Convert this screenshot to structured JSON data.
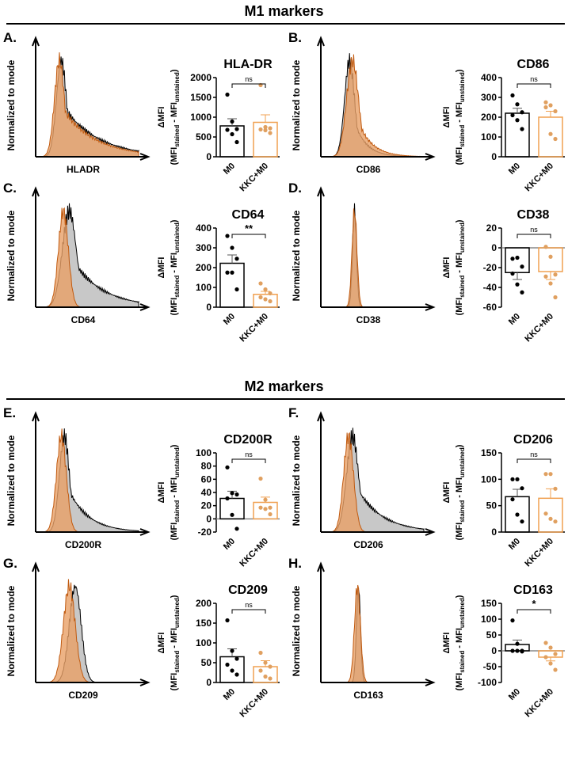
{
  "sections": [
    {
      "title": "M1 markers"
    },
    {
      "title": "M2 markers"
    }
  ],
  "colors": {
    "m0": "#000000",
    "kkc": "#f0a050",
    "grey_fill": "#c8c8c8",
    "orange_fill": "#e8a066"
  },
  "histogram_ylabel": "Normalized to mode",
  "bar_ylabel_main": "ΔMFI",
  "bar_ylabel_sub": "(MFI",
  "bar_ylabel_parts": [
    "(MFI",
    "stained",
    " - MFI",
    "unstained",
    ")"
  ],
  "categories": [
    "M0",
    "KKC+M0"
  ],
  "chart_data": [
    {
      "panel": "A.",
      "type": "bar",
      "title": "HLA-DR",
      "histogram_xlabel": "HLADR",
      "ylim": [
        0,
        2000
      ],
      "ticks": [
        0,
        500,
        1000,
        1500,
        2000
      ],
      "significance": "ns",
      "series": [
        {
          "name": "M0",
          "mean": 780,
          "sem": 180,
          "points": [
            1570,
            890,
            700,
            680,
            570,
            370
          ]
        },
        {
          "name": "KKC+M0",
          "mean": 870,
          "sem": 190,
          "points": [
            1810,
            750,
            720,
            690,
            670,
            600
          ]
        }
      ]
    },
    {
      "panel": "B.",
      "type": "bar",
      "title": "CD86",
      "histogram_xlabel": "CD86",
      "ylim": [
        0,
        400
      ],
      "ticks": [
        0,
        100,
        200,
        300,
        400
      ],
      "significance": "ns",
      "series": [
        {
          "name": "M0",
          "mean": 220,
          "sem": 25,
          "points": [
            310,
            265,
            225,
            210,
            185,
            140
          ]
        },
        {
          "name": "KKC+M0",
          "mean": 200,
          "sem": 30,
          "points": [
            275,
            260,
            230,
            250,
            115,
            90
          ]
        }
      ]
    },
    {
      "panel": "C.",
      "type": "bar",
      "title": "CD64",
      "histogram_xlabel": "CD64",
      "ylim": [
        0,
        400
      ],
      "ticks": [
        0,
        100,
        200,
        300,
        400
      ],
      "significance": "**",
      "series": [
        {
          "name": "M0",
          "mean": 222,
          "sem": 42,
          "points": [
            360,
            300,
            245,
            175,
            175,
            90
          ]
        },
        {
          "name": "KKC+M0",
          "mean": 65,
          "sem": 15,
          "points": [
            120,
            90,
            70,
            50,
            40,
            30
          ]
        }
      ]
    },
    {
      "panel": "D.",
      "type": "bar",
      "title": "CD38",
      "histogram_xlabel": "CD38",
      "ylim": [
        -60,
        20
      ],
      "ticks": [
        -60,
        -40,
        -20,
        0,
        20
      ],
      "significance": "ns",
      "series": [
        {
          "name": "M0",
          "mean": -25,
          "sem": 7,
          "points": [
            -11,
            -10,
            -19,
            -26,
            -37,
            -45
          ]
        },
        {
          "name": "KKC+M0",
          "mean": -24,
          "sem": 8,
          "points": [
            1,
            -9,
            -27,
            -29,
            -36,
            -50
          ]
        }
      ]
    },
    {
      "panel": "E.",
      "type": "bar",
      "title": "CD200R",
      "histogram_xlabel": "CD200R",
      "ylim": [
        -20,
        100
      ],
      "ticks": [
        -20,
        0,
        20,
        40,
        60,
        80,
        100
      ],
      "significance": "ns",
      "series": [
        {
          "name": "M0",
          "mean": 31,
          "sem": 11,
          "points": [
            78,
            39,
            37,
            31,
            6,
            -15
          ]
        },
        {
          "name": "KKC+M0",
          "mean": 25,
          "sem": 8,
          "points": [
            61,
            29,
            17,
            17,
            15,
            7
          ]
        }
      ]
    },
    {
      "panel": "F.",
      "type": "bar",
      "title": "CD206",
      "histogram_xlabel": "CD206",
      "ylim": [
        0,
        150
      ],
      "ticks": [
        0,
        50,
        100,
        150
      ],
      "significance": "ns",
      "series": [
        {
          "name": "M0",
          "mean": 67,
          "sem": 14,
          "points": [
            100,
            100,
            83,
            62,
            33,
            20
          ]
        },
        {
          "name": "KKC+M0",
          "mean": 64,
          "sem": 18,
          "points": [
            110,
            110,
            82,
            35,
            25,
            20
          ]
        }
      ]
    },
    {
      "panel": "G.",
      "type": "bar",
      "title": "CD209",
      "histogram_xlabel": "CD209",
      "ylim": [
        0,
        200
      ],
      "ticks": [
        0,
        50,
        100,
        150,
        200
      ],
      "significance": "ns",
      "series": [
        {
          "name": "M0",
          "mean": 65,
          "sem": 20,
          "points": [
            157,
            80,
            60,
            45,
            30,
            20
          ]
        },
        {
          "name": "KKC+M0",
          "mean": 40,
          "sem": 15,
          "points": [
            75,
            50,
            40,
            30,
            15,
            10
          ]
        }
      ]
    },
    {
      "panel": "H.",
      "type": "bar",
      "title": "CD163",
      "histogram_xlabel": "CD163",
      "ylim": [
        -100,
        150
      ],
      "ticks": [
        -100,
        -50,
        0,
        50,
        100,
        150
      ],
      "significance": "*",
      "series": [
        {
          "name": "M0",
          "mean": 20,
          "sem": 14,
          "points": [
            96,
            22,
            0,
            0,
            0,
            -2
          ]
        },
        {
          "name": "KKC+M0",
          "mean": -20,
          "sem": 12,
          "points": [
            25,
            10,
            -10,
            -20,
            -40,
            -60
          ]
        }
      ]
    }
  ]
}
